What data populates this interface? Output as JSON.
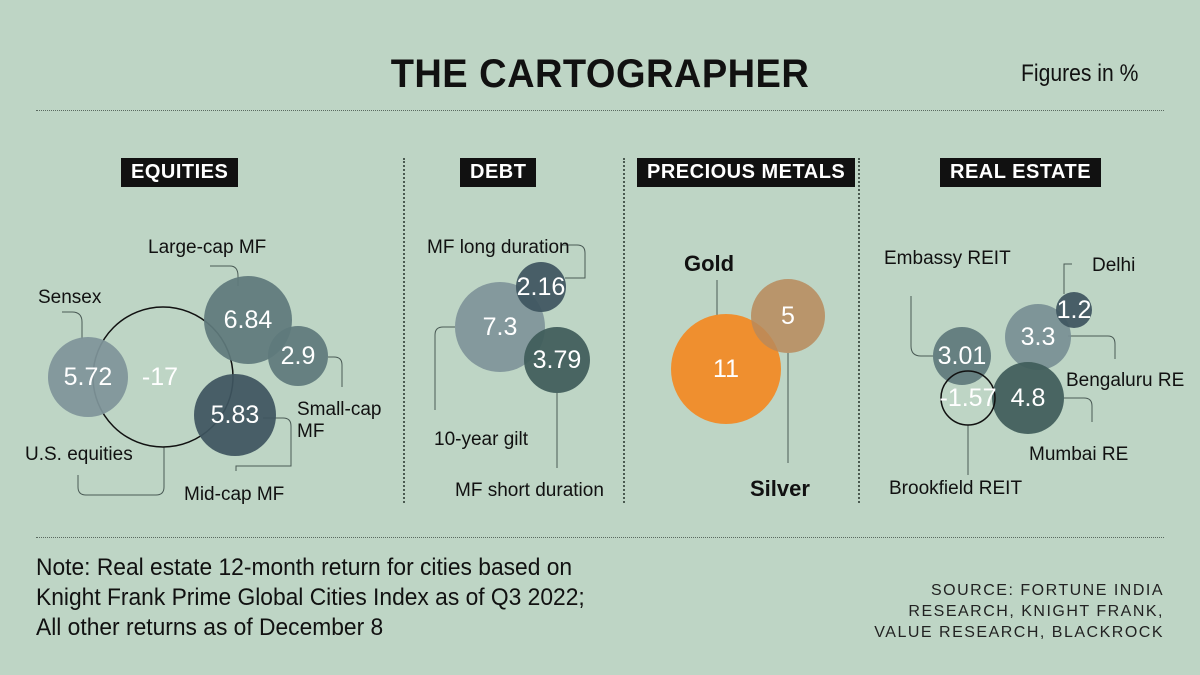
{
  "header": {
    "title": "THE CARTOGRAPHER",
    "units": "Figures in %"
  },
  "chart_data": {
    "type": "bubble",
    "title": "THE CARTOGRAPHER",
    "units": "Figures in %",
    "sections": [
      {
        "name": "EQUITIES",
        "items": [
          {
            "label": "U.S. equities",
            "value": -17
          },
          {
            "label": "Sensex",
            "value": 5.72
          },
          {
            "label": "Large-cap MF",
            "value": 6.84
          },
          {
            "label": "Small-cap MF",
            "value": 2.9
          },
          {
            "label": "Mid-cap MF",
            "value": 5.83
          }
        ]
      },
      {
        "name": "DEBT",
        "items": [
          {
            "label": "10-year gilt",
            "value": 7.3
          },
          {
            "label": "MF long duration",
            "value": 2.16
          },
          {
            "label": "MF short duration",
            "value": 3.79
          }
        ]
      },
      {
        "name": "PRECIOUS METALS",
        "items": [
          {
            "label": "Gold",
            "value": 11
          },
          {
            "label": "Silver",
            "value": 5
          }
        ]
      },
      {
        "name": "REAL ESTATE",
        "items": [
          {
            "label": "Embassy REIT",
            "value": 3.01
          },
          {
            "label": "Bengaluru RE",
            "value": 3.3
          },
          {
            "label": "Delhi",
            "value": 1.2
          },
          {
            "label": "Mumbai RE",
            "value": 4.8
          },
          {
            "label": "Brookfield REIT",
            "value": -1.57
          }
        ]
      }
    ],
    "colors": {
      "background": "#bed5c5",
      "gold": "#f28a24",
      "silver": "#b98a5a",
      "slate_light": "#7f959a",
      "slate_mid": "#5f7a7c",
      "slate_dark": "#3e5560",
      "teal_dark": "#3f5d5a"
    }
  },
  "footer": {
    "note": [
      "Note: Real estate 12-month return for cities based on",
      "Knight Frank Prime Global Cities Index as of Q3 2022;",
      "All other returns as of December 8"
    ],
    "source": [
      "SOURCE: FORTUNE INDIA",
      "RESEARCH, KNIGHT FRANK,",
      "VALUE RESEARCH, BLACKROCK"
    ]
  }
}
